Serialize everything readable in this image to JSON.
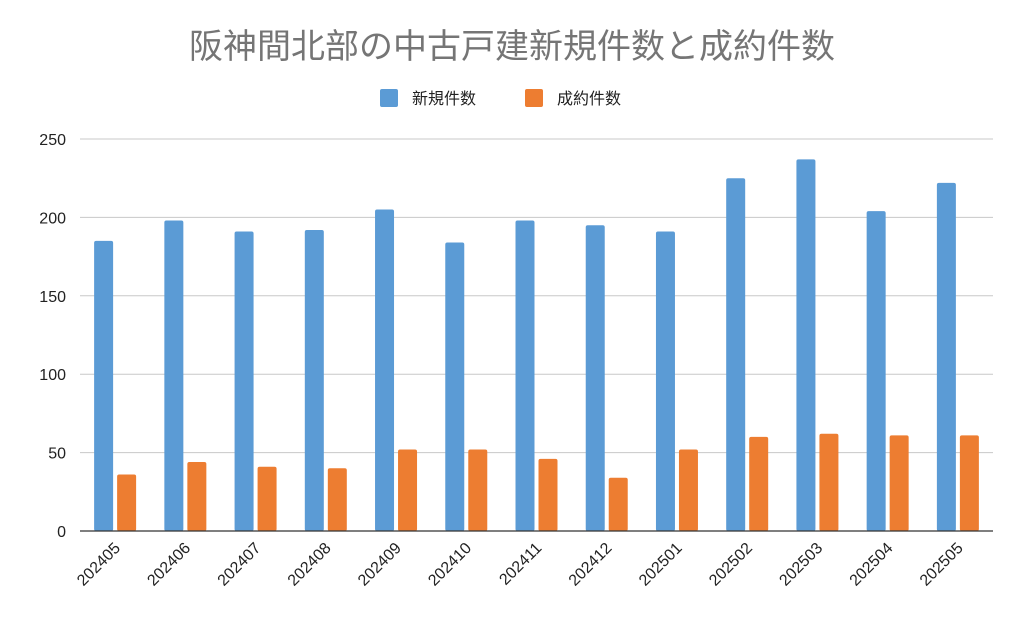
{
  "chart_data": {
    "type": "bar",
    "title": "阪神間北部の中古戸建新規件数と成約件数",
    "categories": [
      "202405",
      "202406",
      "202407",
      "202408",
      "202409",
      "202410",
      "202411",
      "202412",
      "202501",
      "202502",
      "202503",
      "202504",
      "202505"
    ],
    "series": [
      {
        "name": "新規件数",
        "color": "#5b9bd5",
        "values": [
          185,
          198,
          191,
          192,
          205,
          184,
          198,
          195,
          191,
          225,
          237,
          204,
          222
        ]
      },
      {
        "name": "成約件数",
        "color": "#ed7d31",
        "values": [
          36,
          44,
          41,
          40,
          52,
          52,
          46,
          34,
          52,
          60,
          62,
          61,
          61
        ]
      }
    ],
    "ylim": [
      0,
      250
    ],
    "yticks": [
      0,
      50,
      100,
      150,
      200,
      250
    ],
    "grid": true,
    "legend": "top"
  }
}
